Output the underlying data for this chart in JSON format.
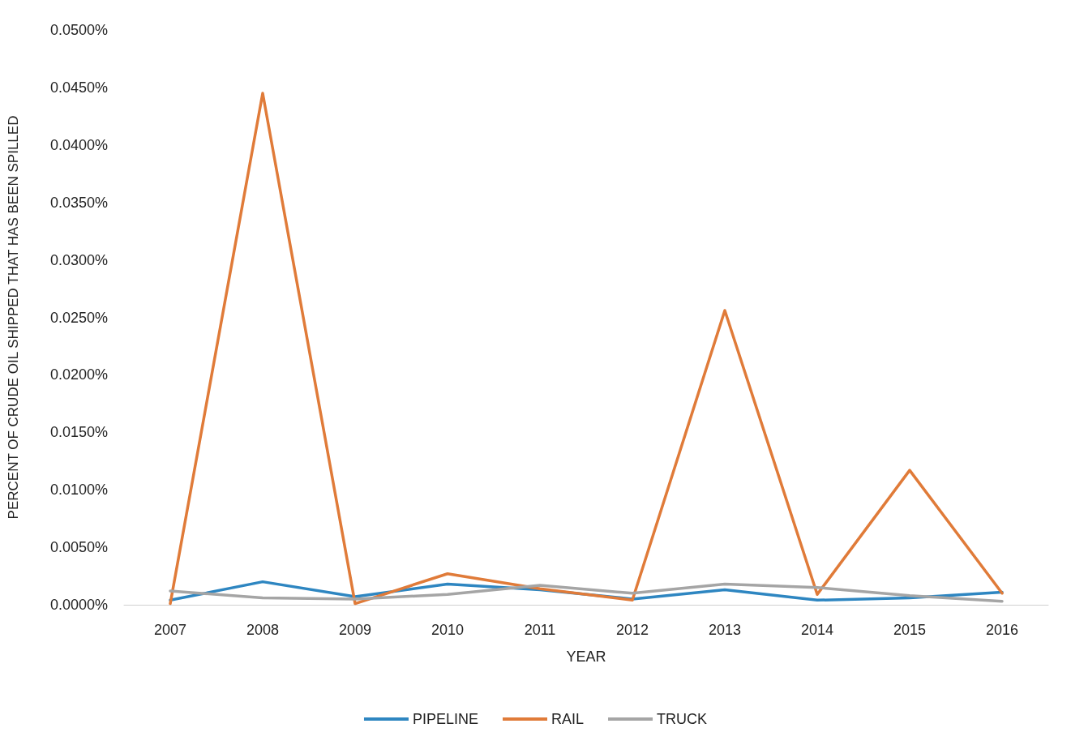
{
  "chart_data": {
    "type": "line",
    "xlabel": "YEAR",
    "ylabel": "PERCENT OF CRUDE OIL SHIPPED THAT HAS BEEN SPILLED",
    "categories": [
      "2007",
      "2008",
      "2009",
      "2010",
      "2011",
      "2012",
      "2013",
      "2014",
      "2015",
      "2016"
    ],
    "series": [
      {
        "name": "PIPELINE",
        "color": "#2e86c1",
        "values": [
          0.0004,
          0.002,
          0.0007,
          0.0018,
          0.0013,
          0.0005,
          0.0013,
          0.0004,
          0.0006,
          0.0011
        ]
      },
      {
        "name": "RAIL",
        "color": "#e07b39",
        "values": [
          0.0001,
          0.0445,
          0.0001,
          0.0027,
          0.0014,
          0.0004,
          0.0256,
          0.0009,
          0.0117,
          0.001
        ]
      },
      {
        "name": "TRUCK",
        "color": "#a5a5a5",
        "values": [
          0.0012,
          0.0006,
          0.0005,
          0.0009,
          0.0017,
          0.001,
          0.0018,
          0.0015,
          0.0008,
          0.0003
        ]
      }
    ],
    "ylim": [
      0,
      0.05
    ],
    "yticks": [
      {
        "value": 0,
        "label": "0.0000%"
      },
      {
        "value": 0.005,
        "label": "0.0050%"
      },
      {
        "value": 0.01,
        "label": "0.0100%"
      },
      {
        "value": 0.015,
        "label": "0.0150%"
      },
      {
        "value": 0.02,
        "label": "0.0200%"
      },
      {
        "value": 0.025,
        "label": "0.0250%"
      },
      {
        "value": 0.03,
        "label": "0.0300%"
      },
      {
        "value": 0.035,
        "label": "0.0350%"
      },
      {
        "value": 0.04,
        "label": "0.0400%"
      },
      {
        "value": 0.045,
        "label": "0.0450%"
      },
      {
        "value": 0.05,
        "label": "0.0500%"
      }
    ],
    "grid": false,
    "legend": "bottom",
    "marker": "none",
    "line_style": "solid"
  }
}
